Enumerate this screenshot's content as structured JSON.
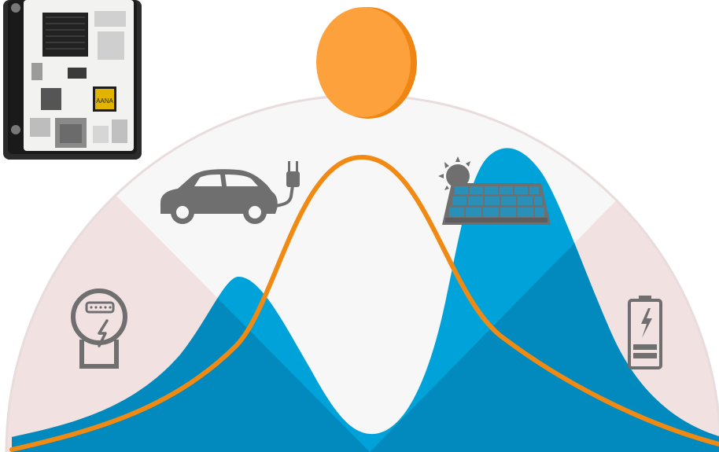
{
  "colors": {
    "background": "#ffffff",
    "dome": "#f7f7f7",
    "dome_outline": "#e6d9da",
    "side_sectors": "#f1e1e1",
    "demand_fill": "#00a3d9",
    "demand_shade": "#0289bd",
    "solar_curve": "#f08a12",
    "sun_main": "#fca13c",
    "sun_rim": "#ef8512",
    "icon_grey": "#6f6f6f",
    "panel_cell": "#2b90b7"
  },
  "icons": {
    "sun": "sun-icon",
    "board": "single-board-computer-image",
    "electric_car": "electric-car-icon",
    "solar_panel": "solar-panel-icon",
    "energy_meter": "energy-meter-icon",
    "battery": "battery-icon"
  },
  "board_marking": "AANA"
}
